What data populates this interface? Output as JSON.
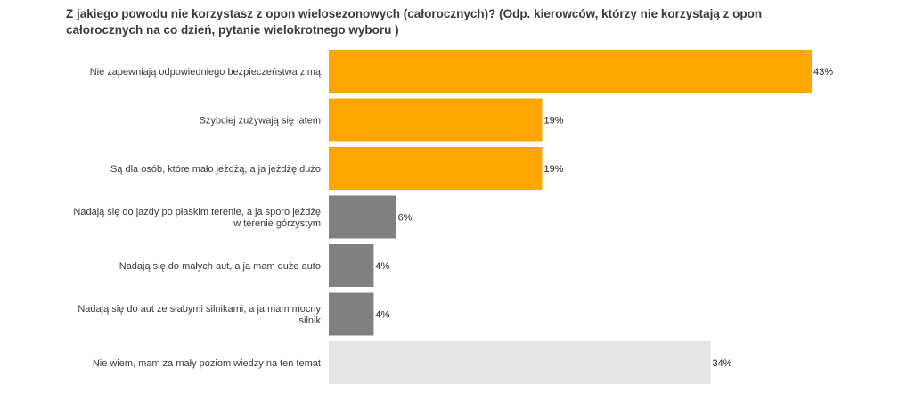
{
  "chart_data": {
    "type": "bar",
    "orientation": "horizontal",
    "title": "Z jakiego powodu nie korzystasz z opon wielosezonowych (całorocznych)? (Odp. kierowców, którzy nie korzystają z opon całorocznych na co dzień, pytanie wielokrotnego wyboru )",
    "categories": [
      [
        "Nie zapewniają odpowiedniego bezpieczeństwa zimą"
      ],
      [
        "Szybciej zużywają się latem"
      ],
      [
        "Są dla osób, które mało jeżdżą, a ja jeżdżę dużo"
      ],
      [
        "Nadają się do jazdy po płaskim terenie, a ja sporo jeżdżę",
        "w terenie górzystym"
      ],
      [
        "Nadają się do małych aut, a ja mam duże auto"
      ],
      [
        "Nadają się do aut ze słabymi silnikami, a ja mam mocny",
        "silnik"
      ],
      [
        "Nie wiem, mam za mały poziom wiedzy na ten temat"
      ]
    ],
    "values": [
      43,
      19,
      19,
      6,
      4,
      4,
      34
    ],
    "value_labels": [
      "43%",
      "19%",
      "19%",
      "6%",
      "4%",
      "4%",
      "34%"
    ],
    "unit": "%",
    "xlim": [
      0,
      43
    ],
    "grid": false,
    "legend": "none",
    "colors": [
      "#FFA500",
      "#FFA500",
      "#FFA500",
      "#808080",
      "#808080",
      "#808080",
      "#E5E5E5"
    ]
  }
}
